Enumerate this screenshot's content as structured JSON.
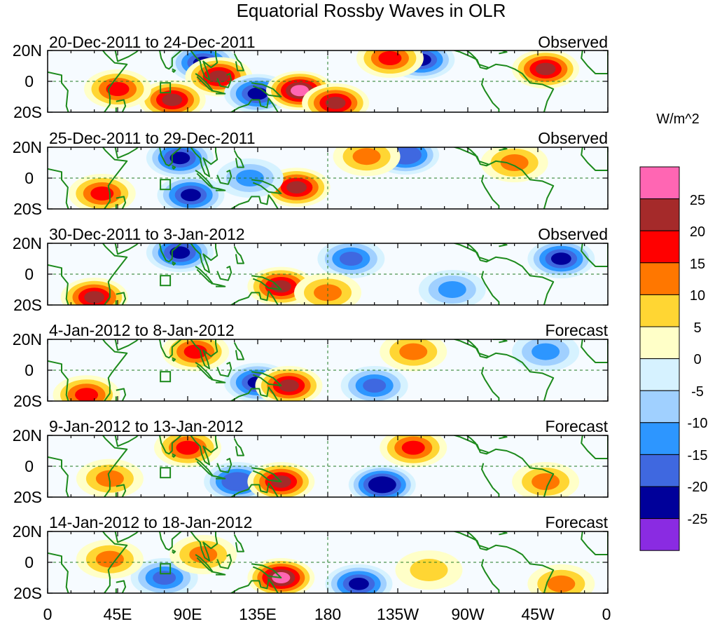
{
  "title": "Equatorial Rossby Waves in OLR",
  "panels": [
    {
      "date_range": "20-Dec-2011 to 24-Dec-2011",
      "status": "Observed"
    },
    {
      "date_range": "25-Dec-2011 to 29-Dec-2011",
      "status": "Observed"
    },
    {
      "date_range": "30-Dec-2011 to 3-Jan-2012",
      "status": "Observed"
    },
    {
      "date_range": "4-Jan-2012 to 8-Jan-2012",
      "status": "Forecast"
    },
    {
      "date_range": "9-Jan-2012 to 13-Jan-2012",
      "status": "Forecast"
    },
    {
      "date_range": "14-Jan-2012 to 18-Jan-2012",
      "status": "Forecast"
    }
  ],
  "lat_labels": [
    "20N",
    "0",
    "20S"
  ],
  "lon_labels": [
    "0",
    "45E",
    "90E",
    "135E",
    "180",
    "135W",
    "90W",
    "45W",
    "0"
  ],
  "colorbar": {
    "units": "W/m^2",
    "labels": [
      "25",
      "20",
      "15",
      "10",
      "5",
      "0",
      "-5",
      "-10",
      "-15",
      "-20",
      "-25"
    ],
    "colors": [
      "#ff66b3",
      "#a52a2a",
      "#ff0000",
      "#ff7700",
      "#ffd633",
      "#ffffc8",
      "#d6f2ff",
      "#a0d0ff",
      "#2d96ff",
      "#3f68e0",
      "#00009a",
      "#8a2be2"
    ]
  },
  "chart_data": {
    "type": "heatmap",
    "title": "Equatorial Rossby Waves in OLR",
    "variable": "OLR anomaly",
    "units": "W/m^2",
    "x_axis": {
      "range_degrees_east": [
        0,
        360
      ],
      "tick_labels": [
        "0",
        "45E",
        "90E",
        "135E",
        "180",
        "135W",
        "90W",
        "45W",
        "0"
      ]
    },
    "y_axis": {
      "range_degrees": [
        -20,
        20
      ],
      "tick_labels": [
        "20N",
        "0",
        "20S"
      ]
    },
    "contour_levels": [
      -25,
      -20,
      -15,
      -10,
      -5,
      0,
      5,
      10,
      15,
      20,
      25
    ],
    "anomaly_centers": [
      [
        {
          "lon": 100,
          "lat": 12,
          "value": -24
        },
        {
          "lon": 110,
          "lat": 3,
          "value": 22
        },
        {
          "lon": 80,
          "lat": -12,
          "value": 22
        },
        {
          "lon": 45,
          "lat": -5,
          "value": 17
        },
        {
          "lon": 135,
          "lat": -8,
          "value": -22
        },
        {
          "lon": 162,
          "lat": -6,
          "value": 27
        },
        {
          "lon": 185,
          "lat": -14,
          "value": 20
        },
        {
          "lon": 240,
          "lat": 14,
          "value": -24
        },
        {
          "lon": 220,
          "lat": 15,
          "value": 18
        },
        {
          "lon": 320,
          "lat": 8,
          "value": 20
        }
      ],
      [
        {
          "lon": 85,
          "lat": 13,
          "value": -24
        },
        {
          "lon": 92,
          "lat": -11,
          "value": -22
        },
        {
          "lon": 160,
          "lat": -6,
          "value": 24
        },
        {
          "lon": 230,
          "lat": 15,
          "value": -20
        },
        {
          "lon": 35,
          "lat": -10,
          "value": 15
        },
        {
          "lon": 130,
          "lat": 0,
          "value": -12
        },
        {
          "lon": 205,
          "lat": 14,
          "value": 14
        },
        {
          "lon": 300,
          "lat": 10,
          "value": 14
        }
      ],
      [
        {
          "lon": 30,
          "lat": -15,
          "value": 22
        },
        {
          "lon": 85,
          "lat": 14,
          "value": -22
        },
        {
          "lon": 150,
          "lat": -8,
          "value": 20
        },
        {
          "lon": 195,
          "lat": 10,
          "value": -18
        },
        {
          "lon": 330,
          "lat": 10,
          "value": -24
        },
        {
          "lon": 260,
          "lat": -10,
          "value": -12
        },
        {
          "lon": 180,
          "lat": -12,
          "value": 12
        }
      ],
      [
        {
          "lon": 25,
          "lat": -16,
          "value": 18
        },
        {
          "lon": 95,
          "lat": 12,
          "value": 17
        },
        {
          "lon": 135,
          "lat": -8,
          "value": -22
        },
        {
          "lon": 155,
          "lat": -10,
          "value": 22
        },
        {
          "lon": 235,
          "lat": 12,
          "value": 14
        },
        {
          "lon": 210,
          "lat": -10,
          "value": -16
        },
        {
          "lon": 320,
          "lat": 12,
          "value": -14
        }
      ],
      [
        {
          "lon": 90,
          "lat": 12,
          "value": 16
        },
        {
          "lon": 122,
          "lat": -10,
          "value": -20
        },
        {
          "lon": 150,
          "lat": -10,
          "value": 24
        },
        {
          "lon": 215,
          "lat": -12,
          "value": -25
        },
        {
          "lon": 235,
          "lat": 12,
          "value": 15
        },
        {
          "lon": 40,
          "lat": -8,
          "value": 14
        },
        {
          "lon": 320,
          "lat": -10,
          "value": 14
        }
      ],
      [
        {
          "lon": 150,
          "lat": -10,
          "value": 25
        },
        {
          "lon": 200,
          "lat": -14,
          "value": -24
        },
        {
          "lon": 75,
          "lat": -10,
          "value": -16
        },
        {
          "lon": 40,
          "lat": 2,
          "value": 10
        },
        {
          "lon": 100,
          "lat": 5,
          "value": 10
        },
        {
          "lon": 330,
          "lat": -14,
          "value": 14
        },
        {
          "lon": 245,
          "lat": -5,
          "value": 8
        }
      ]
    ]
  }
}
